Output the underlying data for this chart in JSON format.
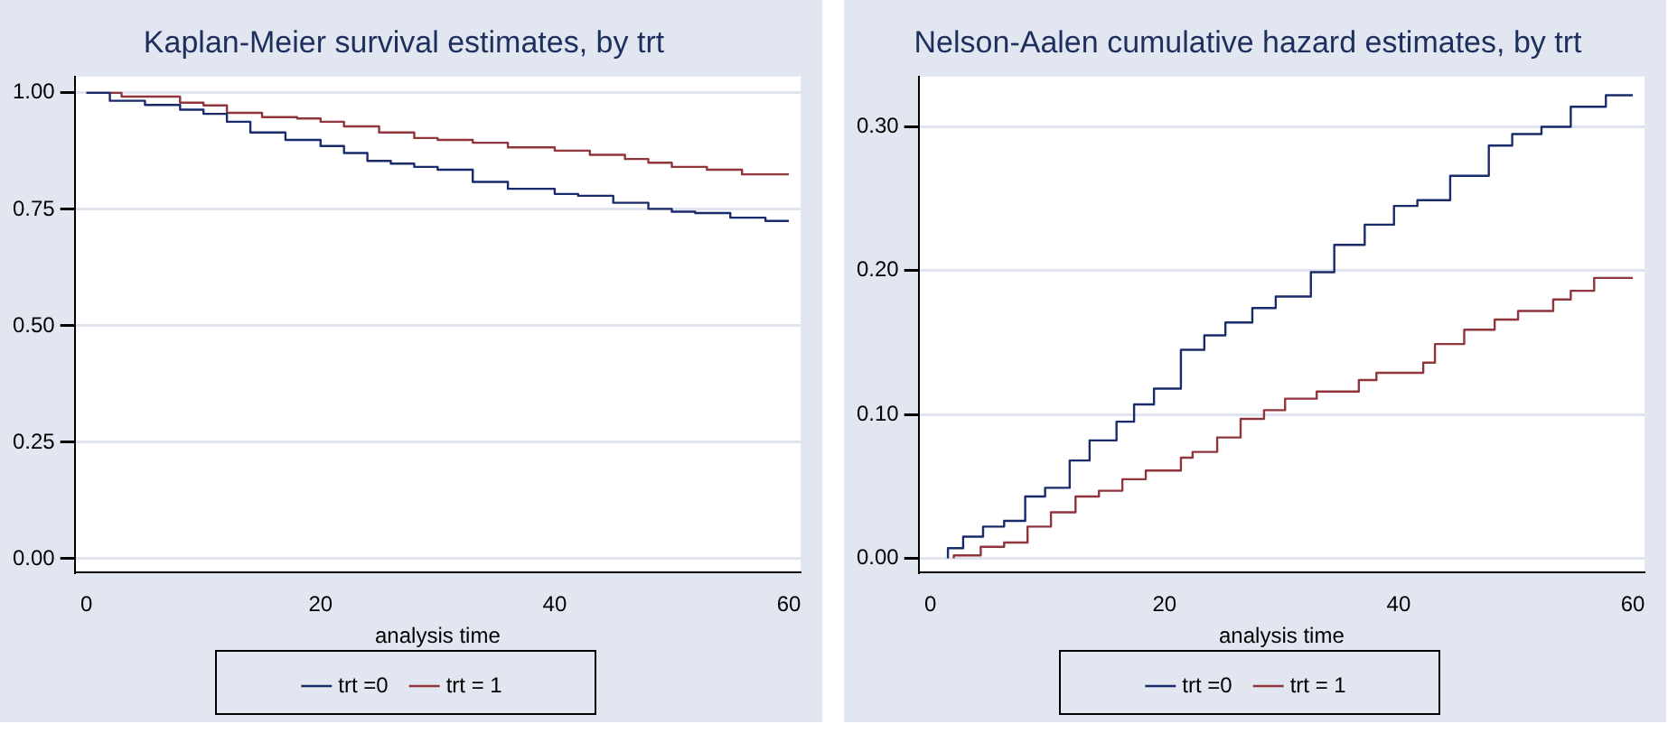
{
  "chart_data": [
    {
      "type": "step",
      "title": "Kaplan-Meier survival estimates, by trt",
      "xlabel": "analysis time",
      "series": [
        {
          "name": "trt =0",
          "color": "#1a2b6b",
          "x": [
            0,
            2,
            5,
            8,
            10,
            12,
            14,
            17,
            20,
            22,
            24,
            26,
            28,
            30,
            33,
            36,
            40,
            42,
            45,
            48,
            50,
            52,
            55,
            58,
            60
          ],
          "values": [
            1.0,
            1.0,
            0.983,
            0.974,
            0.964,
            0.955,
            0.938,
            0.915,
            0.899,
            0.886,
            0.871,
            0.854,
            0.848,
            0.841,
            0.835,
            0.809,
            0.794,
            0.783,
            0.779,
            0.764,
            0.751,
            0.745,
            0.742,
            0.732,
            0.725
          ]
        },
        {
          "name": "trt = 1",
          "color": "#90353b",
          "x": [
            0,
            3,
            8,
            10,
            12,
            15,
            18,
            20,
            22,
            25,
            28,
            30,
            33,
            36,
            40,
            43,
            46,
            48,
            50,
            53,
            56,
            60
          ],
          "values": [
            1.0,
            1.0,
            0.992,
            0.979,
            0.973,
            0.957,
            0.948,
            0.945,
            0.938,
            0.928,
            0.915,
            0.903,
            0.899,
            0.893,
            0.883,
            0.876,
            0.867,
            0.858,
            0.85,
            0.841,
            0.835,
            0.825
          ]
        }
      ],
      "xlim": [
        -1,
        61
      ],
      "xticks": [
        0,
        20,
        40,
        60
      ],
      "ylim": [
        -0.03,
        1.035
      ],
      "yticks": [
        {
          "value": 0,
          "label": "0.00"
        },
        {
          "value": 0.25,
          "label": "0.25"
        },
        {
          "value": 0.5,
          "label": "0.50"
        },
        {
          "value": 0.75,
          "label": "0.75"
        },
        {
          "value": 1,
          "label": "1.00"
        }
      ],
      "grid": "y",
      "legend": "bottom",
      "marker": "none"
    },
    {
      "type": "step",
      "title": "Nelson-Aalen cumulative hazard estimates, by trt",
      "xlabel": "analysis time",
      "series": [
        {
          "name": "trt =0",
          "color": "#1a2b6b",
          "x": [
            1.5,
            2.8,
            4.5,
            6.3,
            8.1,
            9.8,
            11.9,
            13.6,
            15.9,
            17.4,
            19.1,
            21.4,
            23.4,
            25.2,
            27.5,
            29.5,
            32.5,
            34.5,
            37.1,
            39.6,
            41.6,
            44.4,
            47.7,
            49.7,
            52.2,
            54.7,
            57.7,
            60
          ],
          "values": [
            0,
            0.007,
            0.015,
            0.022,
            0.026,
            0.043,
            0.049,
            0.068,
            0.082,
            0.095,
            0.107,
            0.118,
            0.145,
            0.155,
            0.164,
            0.174,
            0.182,
            0.199,
            0.218,
            0.232,
            0.245,
            0.249,
            0.266,
            0.287,
            0.295,
            0.3,
            0.314,
            0.322
          ]
        },
        {
          "name": "trt = 1",
          "color": "#90353b",
          "x": [
            2,
            4.3,
            6.3,
            8.3,
            10.3,
            12.4,
            14.4,
            16.4,
            18.4,
            21.4,
            22.4,
            24.5,
            26.5,
            28.5,
            30.3,
            33,
            36.6,
            38.1,
            42.1,
            43.1,
            45.6,
            48.2,
            50.2,
            53.2,
            54.7,
            56.7,
            60
          ],
          "values": [
            0,
            0.002,
            0.008,
            0.011,
            0.022,
            0.032,
            0.043,
            0.047,
            0.055,
            0.061,
            0.07,
            0.074,
            0.084,
            0.097,
            0.103,
            0.111,
            0.116,
            0.124,
            0.129,
            0.136,
            0.149,
            0.159,
            0.166,
            0.172,
            0.18,
            0.186,
            0.195
          ]
        }
      ],
      "xlim": [
        -1,
        61
      ],
      "xticks": [
        0,
        20,
        40,
        60
      ],
      "ylim": [
        -0.01,
        0.335
      ],
      "yticks": [
        {
          "value": 0,
          "label": "0.00"
        },
        {
          "value": 0.1,
          "label": "0.10"
        },
        {
          "value": 0.2,
          "label": "0.20"
        },
        {
          "value": 0.3,
          "label": "0.30"
        }
      ],
      "grid": "y",
      "legend": "bottom",
      "marker": "none"
    }
  ]
}
